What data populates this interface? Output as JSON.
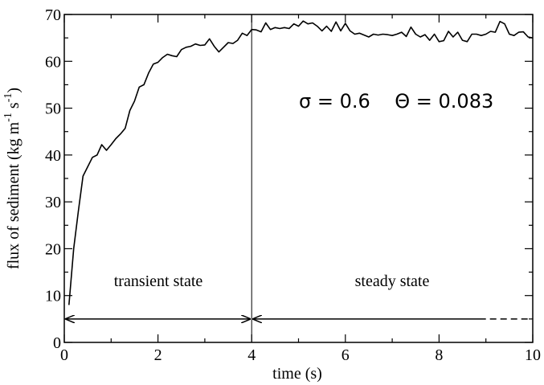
{
  "chart_data": {
    "type": "line",
    "title": "",
    "xlabel": "time (s)",
    "ylabel_main": "flux of sediment (kg m",
    "ylabel_sup1": "-1",
    "ylabel_mid": " s",
    "ylabel_sup2": "-1",
    "ylabel_end": ")",
    "xlim": [
      0,
      10
    ],
    "ylim": [
      0,
      70
    ],
    "xticks": [
      "0",
      "2",
      "4",
      "6",
      "8",
      "10"
    ],
    "yticks": [
      "0",
      "10",
      "20",
      "30",
      "40",
      "50",
      "60",
      "70"
    ],
    "grid": false,
    "legend": "none",
    "series": [
      {
        "x": [
          0.1,
          0.2,
          0.3,
          0.4,
          0.5,
          0.6,
          0.7,
          0.8,
          0.9,
          1.0,
          1.1,
          1.2,
          1.3,
          1.4,
          1.5,
          1.6,
          1.7,
          1.8,
          1.9,
          2.0,
          2.1,
          2.2,
          2.3,
          2.4,
          2.5,
          2.6,
          2.7,
          2.8,
          2.9,
          3.0,
          3.1,
          3.2,
          3.3,
          3.4,
          3.5,
          3.6,
          3.7,
          3.8,
          3.9,
          4.0,
          4.1,
          4.2,
          4.3,
          4.4,
          4.5,
          4.6,
          4.7,
          4.8,
          4.9,
          5.0,
          5.1,
          5.2,
          5.3,
          5.4,
          5.5,
          5.6,
          5.7,
          5.8,
          5.9,
          6.0,
          6.1,
          6.2,
          6.3,
          6.4,
          6.5,
          6.6,
          6.7,
          6.8,
          6.9,
          7.0,
          7.1,
          7.2,
          7.3,
          7.4,
          7.5,
          7.6,
          7.7,
          7.8,
          7.9,
          8.0,
          8.1,
          8.2,
          8.3,
          8.4,
          8.5,
          8.6,
          8.7,
          8.8,
          8.9,
          9.0,
          9.1,
          9.2,
          9.3,
          9.4,
          9.5,
          9.6,
          9.7,
          9.8,
          9.9,
          10.0
        ],
        "y": [
          8,
          20,
          28,
          35.5,
          37.5,
          39.5,
          40,
          42.2,
          41,
          42.2,
          43.5,
          44.5,
          45.7,
          49.5,
          51.5,
          54.5,
          55,
          57.5,
          59.4,
          59.8,
          60.8,
          61.5,
          61.2,
          61,
          62.5,
          63,
          63.2,
          63.7,
          63.4,
          63.5,
          64.8,
          63.2,
          62,
          63,
          64,
          63.8,
          64.5,
          66,
          65.5,
          66.8,
          66.7,
          66.3,
          68.2,
          66.8,
          67.2,
          67,
          67.2,
          67,
          68,
          67.5,
          68.6,
          68,
          68.2,
          67.5,
          66.5,
          67.5,
          66.4,
          68.4,
          66.5,
          68.1,
          66.5,
          65.8,
          66,
          65.6,
          65.2,
          65.8,
          65.6,
          65.8,
          65.7,
          65.5,
          65.8,
          66.2,
          65.3,
          67.3,
          65.8,
          65.2,
          65.7,
          64.5,
          65.8,
          64.2,
          64.4,
          66.4,
          65.2,
          66.2,
          64.5,
          64.2,
          65.8,
          65.8,
          65.5,
          65.8,
          66.4,
          66.2,
          68.5,
          68,
          65.8,
          65.5,
          66.2,
          66.3,
          65.2,
          65
        ]
      }
    ],
    "markers": {
      "divider_x": 4,
      "arrow_y": 5,
      "transient_from": 0,
      "transient_to": 4,
      "steady_from": 4,
      "steady_solid_to": 9,
      "steady_dashed_to": 9.9
    },
    "annotations": {
      "transient": "transient state",
      "steady": "steady state",
      "params": "σ = 0.6    Θ = 0.083"
    }
  }
}
